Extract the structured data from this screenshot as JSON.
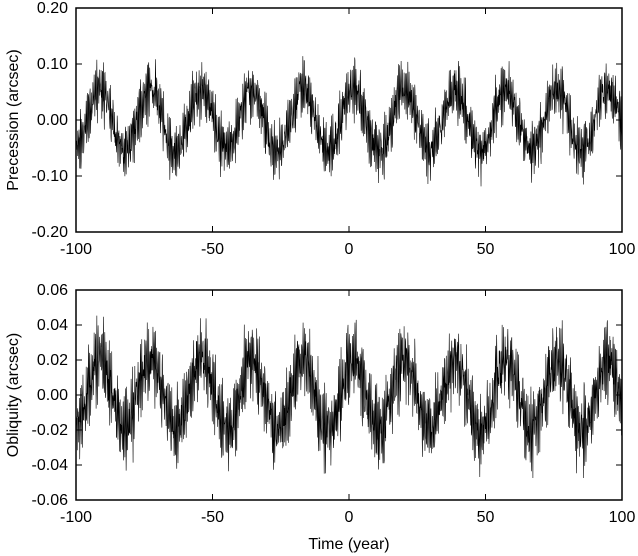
{
  "chart_data": [
    {
      "type": "line",
      "ylabel": "Precession  (arcsec)",
      "xlabel": "",
      "xlim": [
        -100,
        100
      ],
      "ylim": [
        -0.2,
        0.2
      ],
      "xticks": [
        "-100",
        "-50",
        "0",
        "50",
        "100"
      ],
      "yticks": [
        "0.20",
        "0.10",
        "0.00",
        "-0.10",
        "-0.20"
      ],
      "series": [
        {
          "period_years": 18.6,
          "amplitude": 0.055,
          "ripple_amplitude": 0.045,
          "points": 2200
        }
      ]
    },
    {
      "type": "line",
      "ylabel": "Obliquity  (arcsec)",
      "xlabel": "Time  (year)",
      "xlim": [
        -100,
        100
      ],
      "ylim": [
        -0.06,
        0.06
      ],
      "xticks": [
        "-100",
        "-50",
        "0",
        "50",
        "100"
      ],
      "yticks": [
        "0.06",
        "0.04",
        "0.02",
        "0.00",
        "-0.02",
        "-0.04",
        "-0.06"
      ],
      "series": [
        {
          "period_years": 18.6,
          "amplitude": 0.02,
          "ripple_amplitude": 0.02,
          "points": 2200
        }
      ]
    }
  ]
}
